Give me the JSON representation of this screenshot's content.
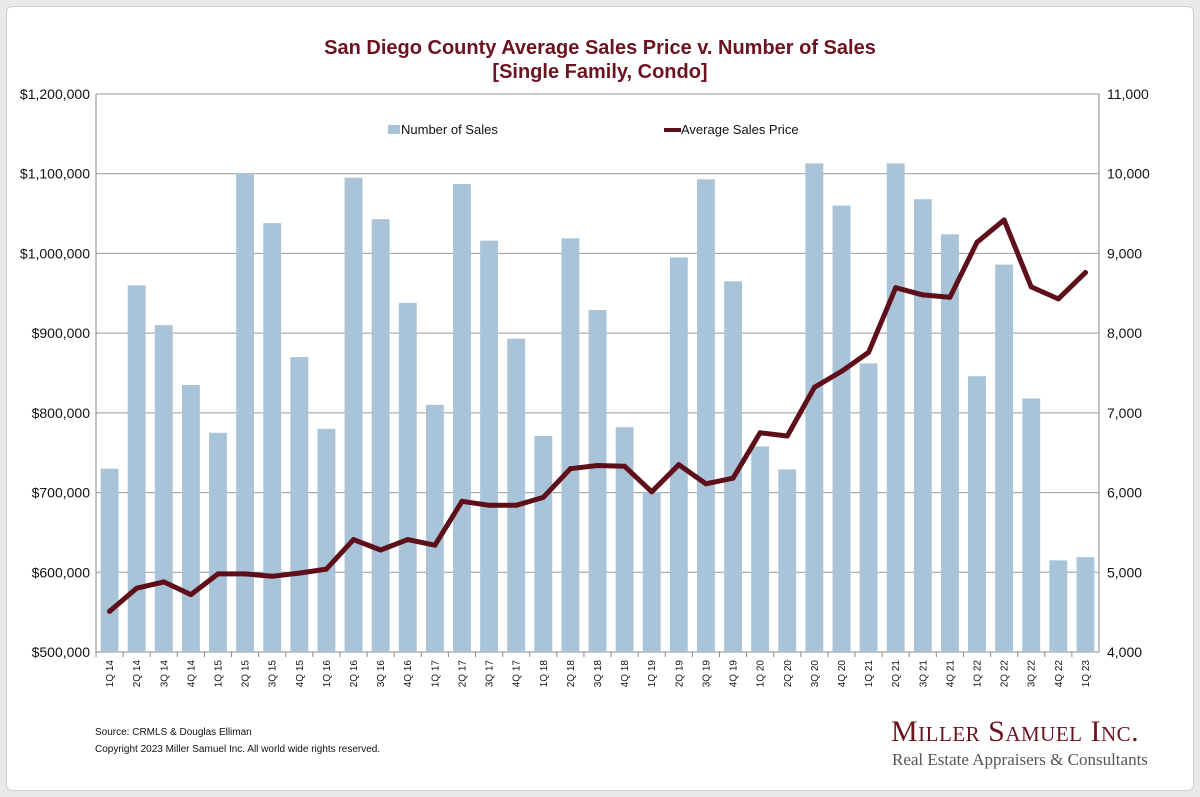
{
  "chart_data": {
    "type": "bar+line",
    "title": "San Diego County Average Sales Price v. Number of Sales",
    "subtitle": "[Single Family, Condo]",
    "categories": [
      "1Q 14",
      "2Q 14",
      "3Q 14",
      "4Q 14",
      "1Q 15",
      "2Q 15",
      "3Q 15",
      "4Q 15",
      "1Q 16",
      "2Q 16",
      "3Q 16",
      "4Q 16",
      "1Q 17",
      "2Q 17",
      "3Q 17",
      "4Q 17",
      "1Q 18",
      "2Q 18",
      "3Q 18",
      "4Q 18",
      "1Q 19",
      "2Q 19",
      "3Q 19",
      "4Q 19",
      "1Q 20",
      "2Q 20",
      "3Q 20",
      "4Q 20",
      "1Q 21",
      "2Q 21",
      "3Q 21",
      "4Q 21",
      "1Q 22",
      "2Q 22",
      "3Q 22",
      "4Q 22",
      "1Q 23"
    ],
    "series": [
      {
        "name": "Number of Sales",
        "type": "bar",
        "axis": "right",
        "color": "#a9c4d8",
        "values": [
          6300,
          8600,
          8100,
          7350,
          6750,
          10000,
          9380,
          7700,
          6800,
          9950,
          9430,
          8380,
          7100,
          9870,
          9160,
          7930,
          6710,
          9190,
          8290,
          6820,
          6010,
          8950,
          9930,
          8650,
          6580,
          6290,
          10130,
          9600,
          7620,
          10130,
          9680,
          9240,
          7460,
          8860,
          7180,
          5150,
          5190
        ]
      },
      {
        "name": "Average Sales Price",
        "type": "line",
        "axis": "left",
        "color": "#5e0f1a",
        "values": [
          551000,
          580000,
          588000,
          572000,
          598000,
          598000,
          595000,
          599000,
          604000,
          641000,
          628000,
          641000,
          634000,
          689000,
          684000,
          684000,
          694000,
          730000,
          734000,
          733000,
          701000,
          735000,
          711000,
          718000,
          775000,
          771000,
          832000,
          852000,
          876000,
          957000,
          948000,
          945000,
          1014000,
          1042000,
          958000,
          943000,
          976000
        ]
      }
    ],
    "y_left": {
      "min": 500000,
      "max": 1200000,
      "step": 100000,
      "tick_labels": [
        "$500,000",
        "$600,000",
        "$700,000",
        "$800,000",
        "$900,000",
        "$1,000,000",
        "$1,100,000",
        "$1,200,000"
      ]
    },
    "y_right": {
      "min": 4000,
      "max": 11000,
      "step": 1000,
      "tick_labels": [
        "4,000",
        "5,000",
        "6,000",
        "7,000",
        "8,000",
        "9,000",
        "10,000",
        "11,000"
      ]
    },
    "grid": true,
    "legend_position": "top"
  },
  "footer": {
    "source": "Source: CRMLS & Douglas Elliman",
    "copyright": "Copyright 2023 Miller Samuel Inc.  All world wide rights reserved."
  },
  "brand": {
    "name": "Miller Samuel Inc.",
    "tagline": "Real Estate Appraisers & Consultants"
  }
}
